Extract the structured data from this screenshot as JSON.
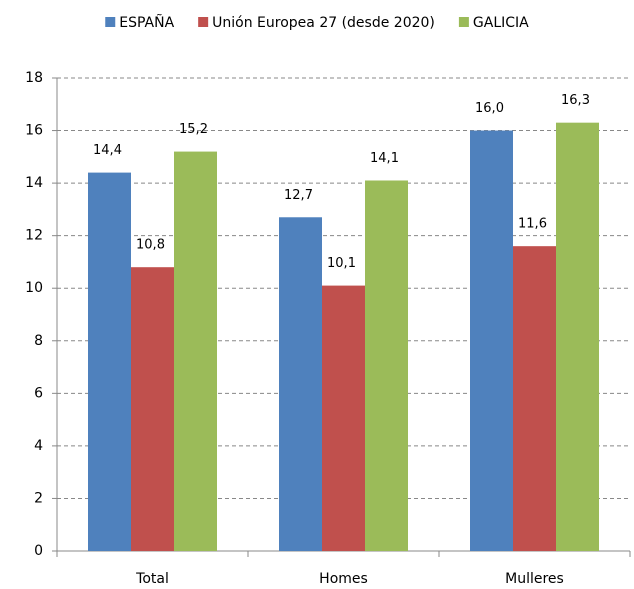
{
  "chart_data": {
    "type": "bar",
    "categories": [
      "Total",
      "Homes",
      "Mulleres"
    ],
    "series": [
      {
        "name": "ESPAÑA",
        "color": "#4f81bd",
        "values": [
          14.4,
          12.7,
          16.0
        ],
        "value_labels": [
          "14,4",
          "12,7",
          "16,0"
        ]
      },
      {
        "name": "Unión Europea 27 (desde 2020)",
        "color": "#c0504d",
        "values": [
          10.8,
          10.1,
          11.6
        ],
        "value_labels": [
          "10,8",
          "10,1",
          "11,6"
        ]
      },
      {
        "name": "GALICIA",
        "color": "#9bbb59",
        "values": [
          15.2,
          14.1,
          16.3
        ],
        "value_labels": [
          "15,2",
          "14,1",
          "16,3"
        ]
      }
    ],
    "ylim": [
      0,
      18
    ],
    "yticks": [
      0,
      2,
      4,
      6,
      8,
      10,
      12,
      14,
      16,
      18
    ],
    "grid": true,
    "legend": "top"
  }
}
